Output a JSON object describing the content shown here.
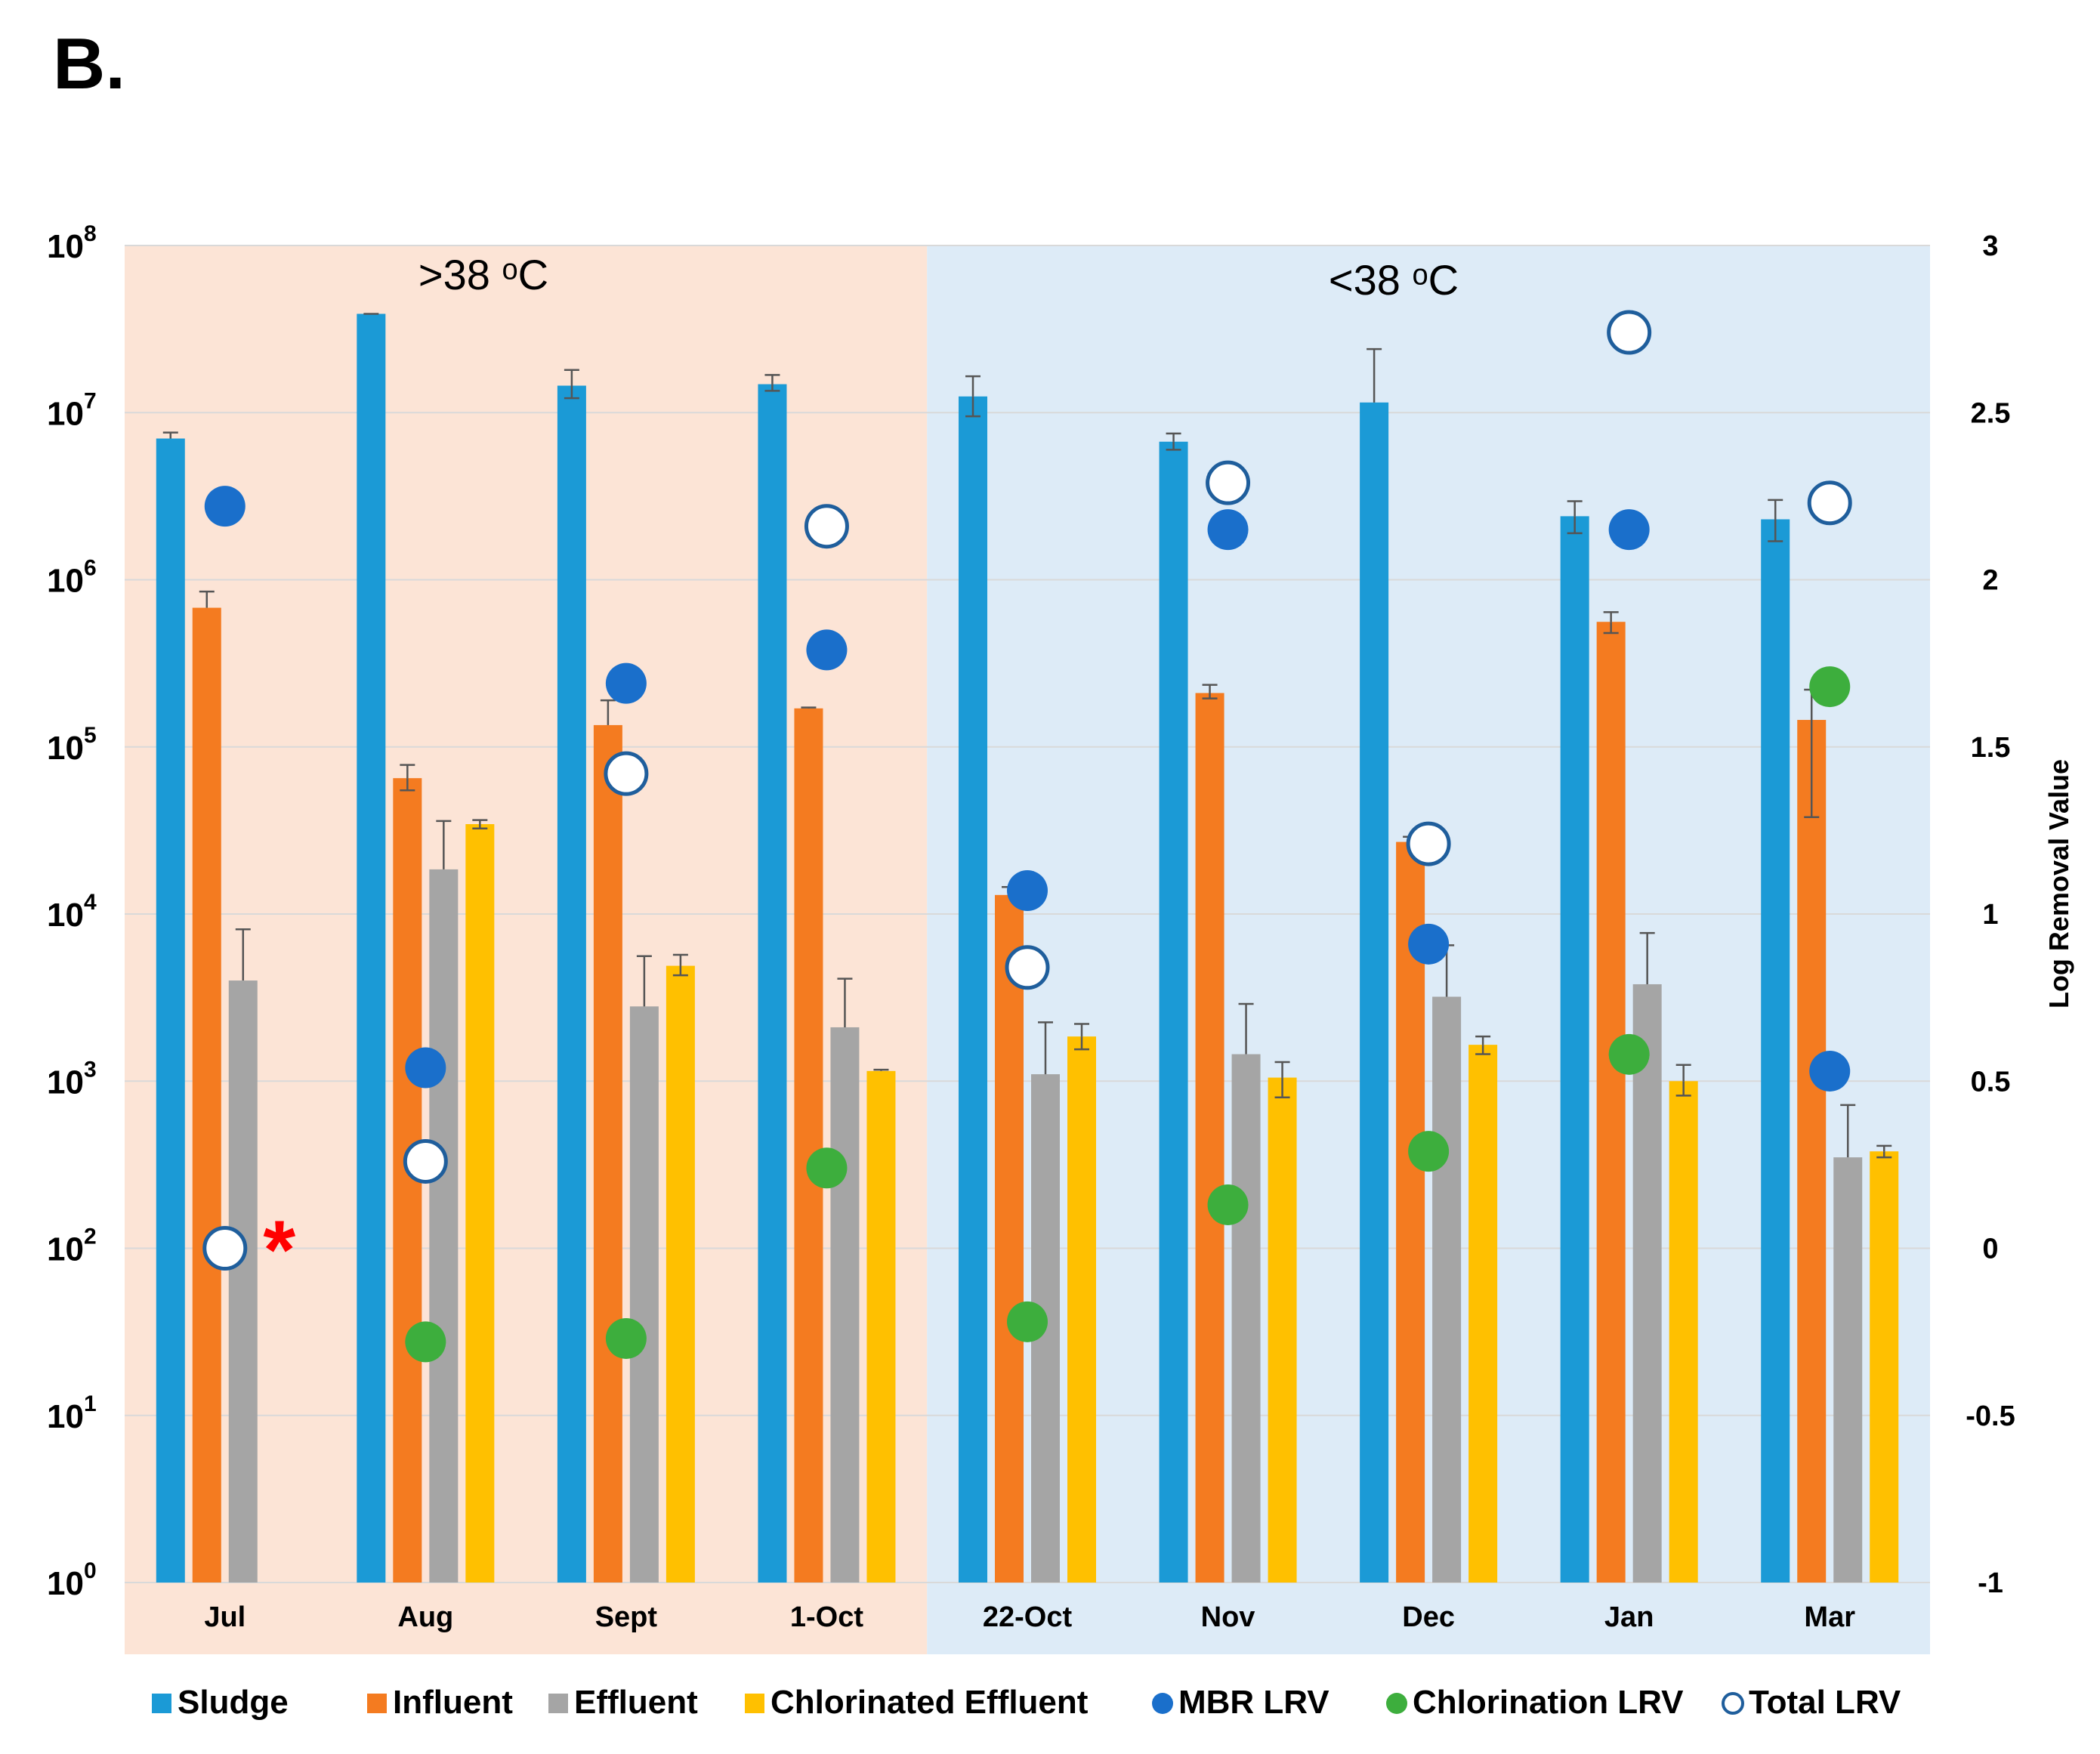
{
  "panel_label": "B.",
  "colors": {
    "sludge": "#1B9AD6",
    "influent": "#F47B20",
    "effluent": "#A5A5A5",
    "chlorinated": "#FFC000",
    "mbr_lrv": "#1A6FCB",
    "chlorination_lrv": "#3DAE3D",
    "total_lrv_stroke": "#1F5E9C",
    "warm_region": "#FCE4D6",
    "cool_region": "#DDEBF7",
    "asterisk": "#FF0000"
  },
  "chart_data": {
    "type": "bar",
    "title": "",
    "regions": [
      {
        "label": ">38 °C",
        "from_category": "Jul",
        "to_category": "1-Oct"
      },
      {
        "label": "<38 °C",
        "from_category": "22-Oct",
        "to_category": "Mar"
      }
    ],
    "region_labels": {
      "warm": ">38 ᵒC",
      "cool": "<38 ᵒC"
    },
    "categories": [
      "Jul",
      "Aug",
      "Sept",
      "1-Oct",
      "22-Oct",
      "Nov",
      "Dec",
      "Jan",
      "Mar"
    ],
    "y_axis": {
      "scale": "log10",
      "ylim": [
        1,
        100000000
      ],
      "tick_exponents": [
        0,
        1,
        2,
        3,
        4,
        5,
        6,
        7,
        8
      ],
      "tick_base": "10",
      "label": ""
    },
    "y2_axis": {
      "label": "Log Removal Value",
      "ylim": [
        -1,
        3
      ],
      "ticks": [
        "-1",
        "-0.5",
        "0",
        "0.5",
        "1",
        "1.5",
        "2",
        "2.5",
        "3"
      ]
    },
    "series": [
      {
        "name": "Sludge",
        "kind": "bar",
        "color_key": "sludge",
        "values": [
          7000000,
          39000000,
          14500000,
          14800000,
          12500000,
          6700000,
          11500000,
          2400000,
          2300000
        ],
        "error_upper": [
          7600000,
          39000000,
          18000000,
          16800000,
          16500000,
          7500000,
          24000000,
          2950000,
          3000000
        ],
        "error_lower": [
          null,
          null,
          12200000,
          13500000,
          9500000,
          6000000,
          null,
          1900000,
          1700000
        ]
      },
      {
        "name": "Influent",
        "kind": "bar",
        "color_key": "influent",
        "values": [
          680000,
          65000,
          135000,
          170000,
          13000,
          210000,
          27000,
          560000,
          145000
        ],
        "error_upper": [
          850000,
          78000,
          190000,
          172000,
          14500,
          235000,
          29000,
          640000,
          220000
        ],
        "error_lower": [
          null,
          55000,
          null,
          null,
          null,
          195000,
          null,
          480000,
          38000
        ]
      },
      {
        "name": "Effluent",
        "kind": "bar",
        "color_key": "effluent",
        "values": [
          4000,
          18500,
          2800,
          2100,
          1100,
          1450,
          3200,
          3800,
          350
        ],
        "error_upper": [
          8100,
          36000,
          5600,
          4100,
          2250,
          2900,
          6500,
          7700,
          720
        ],
        "error_lower": [
          null,
          null,
          null,
          null,
          null,
          null,
          null,
          null,
          null
        ]
      },
      {
        "name": "Chlorinated Effluent",
        "kind": "bar",
        "color_key": "chlorinated",
        "values": [
          null,
          34500,
          4900,
          1150,
          1850,
          1050,
          1650,
          1000,
          380
        ],
        "error_upper": [
          null,
          36500,
          5700,
          1170,
          2200,
          1300,
          1850,
          1250,
          410
        ],
        "error_lower": [
          null,
          32500,
          4300,
          null,
          1550,
          800,
          1450,
          820,
          350
        ]
      },
      {
        "name": "MBR LRV",
        "kind": "marker",
        "axis": "y2",
        "color_key": "mbr_lrv",
        "values": [
          2.22,
          0.54,
          1.69,
          1.79,
          1.07,
          2.15,
          0.91,
          2.15,
          0.53
        ]
      },
      {
        "name": "Chlorination LRV",
        "kind": "marker",
        "axis": "y2",
        "color_key": "chlorination_lrv",
        "values": [
          null,
          -0.28,
          -0.27,
          0.24,
          -0.22,
          0.13,
          0.29,
          0.58,
          1.68
        ]
      },
      {
        "name": "Total LRV",
        "kind": "marker",
        "axis": "y2",
        "hollow": true,
        "color_key": "total_lrv_stroke",
        "values": [
          0.0,
          0.26,
          1.42,
          2.16,
          0.84,
          2.29,
          1.21,
          2.74,
          2.23
        ]
      }
    ],
    "annotations": [
      {
        "text": "*",
        "category": "Jul",
        "series": "Total LRV",
        "color_key": "asterisk"
      }
    ],
    "legend": {
      "position": "bottom",
      "items": [
        {
          "label": "Sludge",
          "shape": "square",
          "color_key": "sludge"
        },
        {
          "label": "Influent",
          "shape": "square",
          "color_key": "influent"
        },
        {
          "label": "Effluent",
          "shape": "square",
          "color_key": "effluent"
        },
        {
          "label": "Chlorinated Effluent",
          "shape": "square",
          "color_key": "chlorinated"
        },
        {
          "label": "MBR LRV",
          "shape": "dot",
          "color_key": "mbr_lrv"
        },
        {
          "label": "Chlorination LRV",
          "shape": "dot",
          "color_key": "chlorination_lrv"
        },
        {
          "label": "Total LRV",
          "shape": "ring",
          "color_key": "total_lrv_stroke"
        }
      ]
    }
  }
}
